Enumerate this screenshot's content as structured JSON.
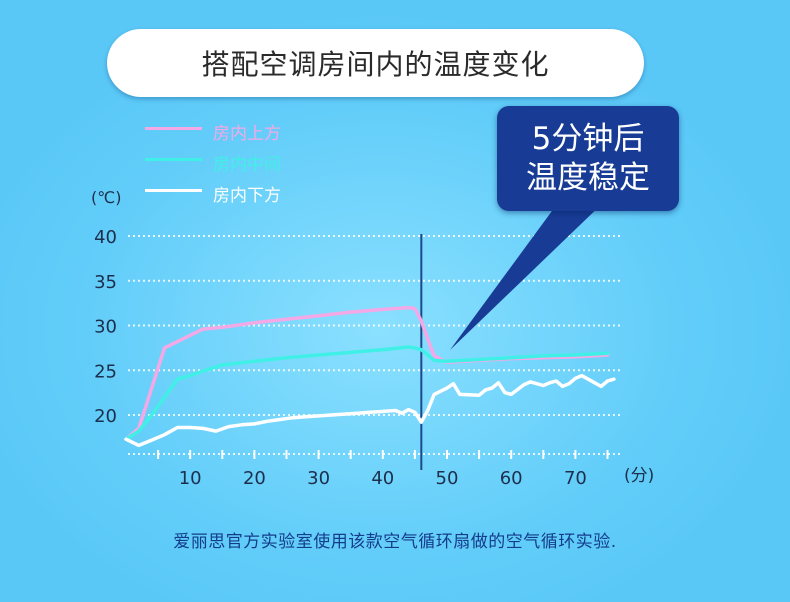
{
  "title": "搭配空调房间内的温度变化",
  "callout": {
    "line1": "5分钟后",
    "line2": "温度稳定"
  },
  "footer": "爱丽思官方实验室使用该款空气循环扇做的空气循环实验.",
  "colors": {
    "top": "#f4a9e6",
    "middle": "#40f0e6",
    "bottom": "#ffffff",
    "marker": "#1d4a8c",
    "callout_bg": "#183c96"
  },
  "chart_data": {
    "type": "line",
    "y_unit": "(℃)",
    "x_unit": "(分)",
    "xlim": [
      0,
      77
    ],
    "ylim": [
      17,
      41
    ],
    "y_ticks": [
      40,
      35,
      30,
      25,
      20
    ],
    "x_ticks": [
      10,
      20,
      30,
      40,
      50,
      60,
      70
    ],
    "marker_x": 46,
    "grid": true,
    "legend_position": "top-left",
    "series": [
      {
        "name": "房内上方",
        "color": "#f4a9e6",
        "points": [
          [
            0,
            17.3
          ],
          [
            2,
            18.5
          ],
          [
            4,
            23
          ],
          [
            6,
            27.5
          ],
          [
            8,
            28.2
          ],
          [
            10,
            28.9
          ],
          [
            12,
            29.6
          ],
          [
            15,
            29.8
          ],
          [
            20,
            30.3
          ],
          [
            25,
            30.7
          ],
          [
            30,
            31.1
          ],
          [
            35,
            31.5
          ],
          [
            40,
            31.8
          ],
          [
            44,
            32
          ],
          [
            45,
            31.9
          ],
          [
            46,
            30.5
          ],
          [
            47,
            28.5
          ],
          [
            48,
            26.6
          ],
          [
            50,
            25.9
          ],
          [
            55,
            26.1
          ],
          [
            60,
            26.3
          ],
          [
            65,
            26.4
          ],
          [
            70,
            26.5
          ],
          [
            75,
            26.7
          ]
        ]
      },
      {
        "name": "房内中间",
        "color": "#40f0e6",
        "points": [
          [
            0,
            17.3
          ],
          [
            2,
            18.2
          ],
          [
            4,
            20
          ],
          [
            6,
            22
          ],
          [
            8,
            24
          ],
          [
            10,
            24.4
          ],
          [
            12,
            24.9
          ],
          [
            15,
            25.6
          ],
          [
            20,
            26
          ],
          [
            25,
            26.4
          ],
          [
            30,
            26.7
          ],
          [
            35,
            27
          ],
          [
            40,
            27.3
          ],
          [
            44,
            27.6
          ],
          [
            45,
            27.5
          ],
          [
            46,
            27.3
          ],
          [
            48,
            26.1
          ],
          [
            50,
            26
          ],
          [
            55,
            26.2
          ],
          [
            60,
            26.4
          ],
          [
            65,
            26.6
          ],
          [
            70,
            26.7
          ],
          [
            75,
            26.9
          ]
        ]
      },
      {
        "name": "房内下方",
        "color": "#ffffff",
        "points": [
          [
            0,
            17.3
          ],
          [
            2,
            16.6
          ],
          [
            4,
            17.2
          ],
          [
            6,
            17.8
          ],
          [
            8,
            18.6
          ],
          [
            10,
            18.6
          ],
          [
            12,
            18.5
          ],
          [
            14,
            18.2
          ],
          [
            16,
            18.7
          ],
          [
            18,
            18.9
          ],
          [
            20,
            19
          ],
          [
            22,
            19.3
          ],
          [
            24,
            19.5
          ],
          [
            26,
            19.7
          ],
          [
            28,
            19.8
          ],
          [
            30,
            19.9
          ],
          [
            32,
            20
          ],
          [
            34,
            20.1
          ],
          [
            36,
            20.2
          ],
          [
            38,
            20.3
          ],
          [
            40,
            20.4
          ],
          [
            42,
            20.5
          ],
          [
            43,
            20.2
          ],
          [
            44,
            20.6
          ],
          [
            45,
            20.3
          ],
          [
            46,
            19.2
          ],
          [
            47,
            20.5
          ],
          [
            48,
            22.3
          ],
          [
            50,
            23
          ],
          [
            51,
            23.5
          ],
          [
            52,
            22.3
          ],
          [
            55,
            22.2
          ],
          [
            56,
            22.8
          ],
          [
            57,
            23
          ],
          [
            58,
            23.6
          ],
          [
            59,
            22.5
          ],
          [
            60,
            22.3
          ],
          [
            62,
            23.4
          ],
          [
            63,
            23.7
          ],
          [
            65,
            23.3
          ],
          [
            66,
            23.6
          ],
          [
            67,
            23.8
          ],
          [
            68,
            23.2
          ],
          [
            69,
            23.5
          ],
          [
            70,
            24.1
          ],
          [
            71,
            24.4
          ],
          [
            72,
            24
          ],
          [
            73,
            23.6
          ],
          [
            74,
            23.2
          ],
          [
            75,
            23.8
          ],
          [
            76,
            24
          ]
        ]
      }
    ]
  }
}
